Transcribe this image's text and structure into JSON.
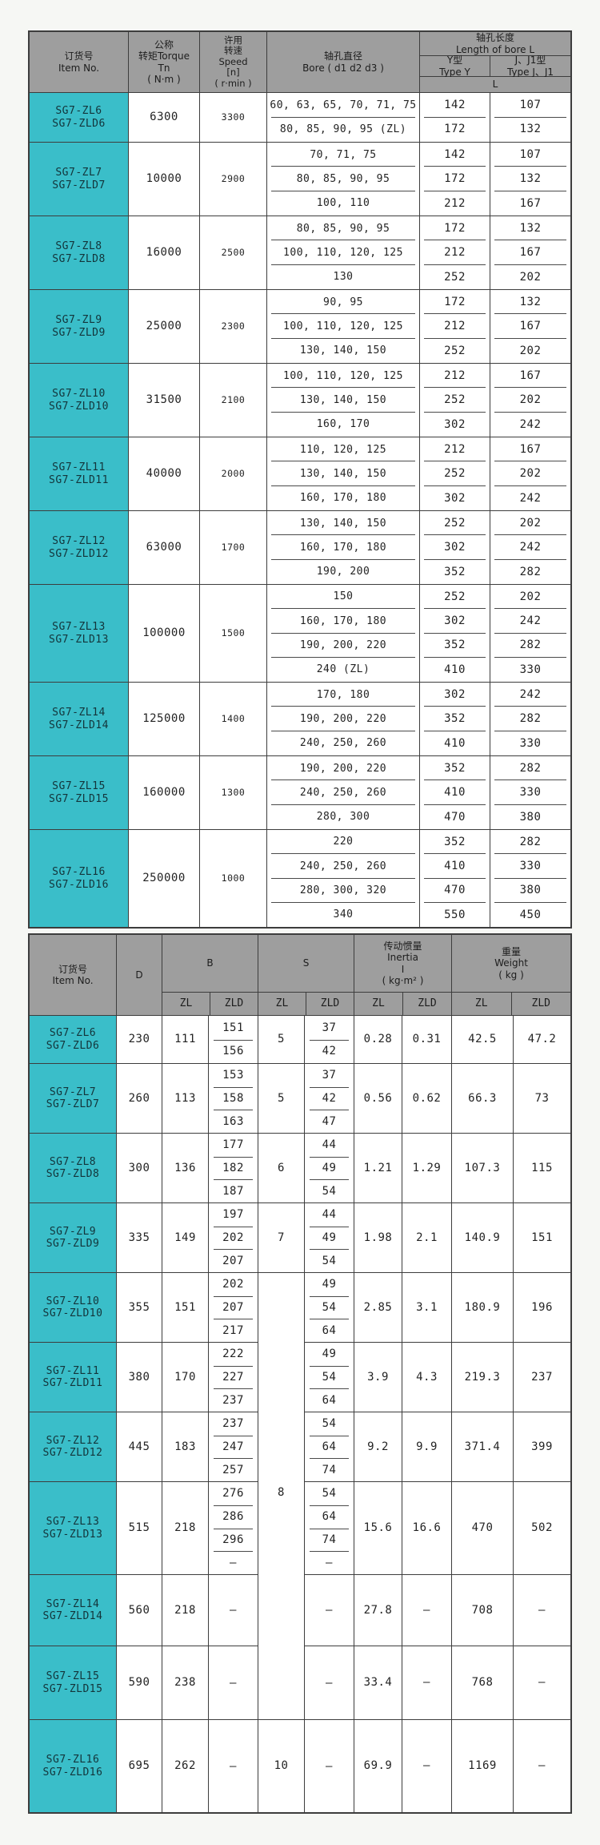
{
  "colors": {
    "header_bg": "#9e9e9e",
    "item_bg": "#3abec9",
    "border": "#3d3d3d",
    "cell_bg": "#ffffff",
    "page_bg": "#f6f7f4"
  },
  "table1": {
    "header": {
      "item": "订货号\nItem No.",
      "torque": "公称\n转矩Torque\nTn\n( N·m )",
      "speed": "许用\n转速\nSpeed\n[n]\n( r·min )",
      "bore": "轴孔直径\nBore ( d1  d2  d3 )",
      "length": "轴孔长度\nLength of bore L",
      "type_y": "Y型\nType Y",
      "type_j": "J、J1型\nType J、J1",
      "l": "L"
    },
    "groups": [
      {
        "item": "SG7-ZL6\nSG7-ZLD6",
        "torque": "6300",
        "speed": "3300",
        "rows": [
          [
            "60, 63, 65, 70, 71, 75",
            "142",
            "107"
          ],
          [
            "80, 85, 90, 95 (ZL)",
            "172",
            "132"
          ]
        ]
      },
      {
        "item": "SG7-ZL7\nSG7-ZLD7",
        "torque": "10000",
        "speed": "2900",
        "rows": [
          [
            "70, 71, 75",
            "142",
            "107"
          ],
          [
            "80, 85, 90, 95",
            "172",
            "132"
          ],
          [
            "100, 110",
            "212",
            "167"
          ]
        ]
      },
      {
        "item": "SG7-ZL8\nSG7-ZLD8",
        "torque": "16000",
        "speed": "2500",
        "rows": [
          [
            "80, 85, 90, 95",
            "172",
            "132"
          ],
          [
            "100, 110, 120, 125",
            "212",
            "167"
          ],
          [
            "130",
            "252",
            "202"
          ]
        ]
      },
      {
        "item": "SG7-ZL9\nSG7-ZLD9",
        "torque": "25000",
        "speed": "2300",
        "rows": [
          [
            "90, 95",
            "172",
            "132"
          ],
          [
            "100, 110, 120, 125",
            "212",
            "167"
          ],
          [
            "130, 140, 150",
            "252",
            "202"
          ]
        ]
      },
      {
        "item": "SG7-ZL10\nSG7-ZLD10",
        "torque": "31500",
        "speed": "2100",
        "rows": [
          [
            "100, 110, 120, 125",
            "212",
            "167"
          ],
          [
            "130, 140, 150",
            "252",
            "202"
          ],
          [
            "160, 170",
            "302",
            "242"
          ]
        ]
      },
      {
        "item": "SG7-ZL11\nSG7-ZLD11",
        "torque": "40000",
        "speed": "2000",
        "rows": [
          [
            "110, 120, 125",
            "212",
            "167"
          ],
          [
            "130, 140, 150",
            "252",
            "202"
          ],
          [
            "160, 170, 180",
            "302",
            "242"
          ]
        ]
      },
      {
        "item": "SG7-ZL12\nSG7-ZLD12",
        "torque": "63000",
        "speed": "1700",
        "rows": [
          [
            "130, 140, 150",
            "252",
            "202"
          ],
          [
            "160, 170, 180",
            "302",
            "242"
          ],
          [
            "190, 200",
            "352",
            "282"
          ]
        ]
      },
      {
        "item": "SG7-ZL13\nSG7-ZLD13",
        "torque": "100000",
        "speed": "1500",
        "rows": [
          [
            "150",
            "252",
            "202"
          ],
          [
            "160, 170, 180",
            "302",
            "242"
          ],
          [
            "190, 200, 220",
            "352",
            "282"
          ],
          [
            "240 (ZL)",
            "410",
            "330"
          ]
        ]
      },
      {
        "item": "SG7-ZL14\nSG7-ZLD14",
        "torque": "125000",
        "speed": "1400",
        "rows": [
          [
            "170, 180",
            "302",
            "242"
          ],
          [
            "190, 200, 220",
            "352",
            "282"
          ],
          [
            "240, 250, 260",
            "410",
            "330"
          ]
        ]
      },
      {
        "item": "SG7-ZL15\nSG7-ZLD15",
        "torque": "160000",
        "speed": "1300",
        "rows": [
          [
            "190, 200, 220",
            "352",
            "282"
          ],
          [
            "240, 250, 260",
            "410",
            "330"
          ],
          [
            "280, 300",
            "470",
            "380"
          ]
        ]
      },
      {
        "item": "SG7-ZL16\nSG7-ZLD16",
        "torque": "250000",
        "speed": "1000",
        "rows": [
          [
            "220",
            "352",
            "282"
          ],
          [
            "240, 250, 260",
            "410",
            "330"
          ],
          [
            "280, 300, 320",
            "470",
            "380"
          ],
          [
            "340",
            "550",
            "450"
          ]
        ]
      }
    ]
  },
  "table2": {
    "header": {
      "item": "订货号\nItem No.",
      "d": "D",
      "b": "B",
      "s": "S",
      "inertia": "传动惯量\nInertia\nI\n( kg·m² )",
      "weight": "重量\nWeight\n( kg )",
      "zl": "ZL",
      "zld": "ZLD"
    },
    "groups": [
      {
        "item": "SG7-ZL6\nSG7-ZLD6",
        "d": "230",
        "b_zl": "111",
        "b_zld": [
          "151",
          "156"
        ],
        "s_zl": "5",
        "s_zld": [
          "37",
          "42"
        ],
        "i_zl": "0.28",
        "i_zld": "0.31",
        "w_zl": "42.5",
        "w_zld": "47.2"
      },
      {
        "item": "SG7-ZL7\nSG7-ZLD7",
        "d": "260",
        "b_zl": "113",
        "b_zld": [
          "153",
          "158",
          "163"
        ],
        "s_zl": "5",
        "s_zld": [
          "37",
          "42",
          "47"
        ],
        "i_zl": "0.56",
        "i_zld": "0.62",
        "w_zl": "66.3",
        "w_zld": "73"
      },
      {
        "item": "SG7-ZL8\nSG7-ZLD8",
        "d": "300",
        "b_zl": "136",
        "b_zld": [
          "177",
          "182",
          "187"
        ],
        "s_zl": "6",
        "s_zld": [
          "44",
          "49",
          "54"
        ],
        "i_zl": "1.21",
        "i_zld": "1.29",
        "w_zl": "107.3",
        "w_zld": "115"
      },
      {
        "item": "SG7-ZL9\nSG7-ZLD9",
        "d": "335",
        "b_zl": "149",
        "b_zld": [
          "197",
          "202",
          "207"
        ],
        "s_zl": "7",
        "s_zld": [
          "44",
          "49",
          "54"
        ],
        "i_zl": "1.98",
        "i_zld": "2.1",
        "w_zl": "140.9",
        "w_zld": "151"
      },
      {
        "item": "SG7-ZL10\nSG7-ZLD10",
        "d": "355",
        "b_zl": "151",
        "b_zld": [
          "202",
          "207",
          "217"
        ],
        "s_zl": "",
        "s_zld": [
          "49",
          "54",
          "64"
        ],
        "i_zl": "2.85",
        "i_zld": "3.1",
        "w_zl": "180.9",
        "w_zld": "196"
      },
      {
        "item": "SG7-ZL11\nSG7-ZLD11",
        "d": "380",
        "b_zl": "170",
        "b_zld": [
          "222",
          "227",
          "237"
        ],
        "s_zl": "",
        "s_zld": [
          "49",
          "54",
          "64"
        ],
        "i_zl": "3.9",
        "i_zld": "4.3",
        "w_zl": "219.3",
        "w_zld": "237",
        "s_open": true
      },
      {
        "item": "SG7-ZL12\nSG7-ZLD12",
        "d": "445",
        "b_zl": "183",
        "b_zld": [
          "237",
          "247",
          "257"
        ],
        "s_zl": "",
        "s_zld": [
          "54",
          "64",
          "74"
        ],
        "i_zl": "9.2",
        "i_zld": "9.9",
        "w_zl": "371.4",
        "w_zld": "399",
        "s_open": true
      },
      {
        "item": "SG7-ZL13\nSG7-ZLD13",
        "d": "515",
        "b_zl": "218",
        "b_zld": [
          "276",
          "286",
          "296",
          "–"
        ],
        "s_zl": "8",
        "s_zld": [
          "54",
          "64",
          "74",
          "–"
        ],
        "i_zl": "15.6",
        "i_zld": "16.6",
        "w_zl": "470",
        "w_zld": "502",
        "s_open": true,
        "s_top": true
      },
      {
        "item": "SG7-ZL14\nSG7-ZLD14",
        "d": "560",
        "b_zl": "218",
        "b_zld": [
          "–"
        ],
        "s_zl": "",
        "s_zld": [
          "–"
        ],
        "i_zl": "27.8",
        "i_zld": "–",
        "w_zl": "708",
        "w_zld": "–",
        "s_open": true
      },
      {
        "item": "SG7-ZL15\nSG7-ZLD15",
        "d": "590",
        "b_zl": "238",
        "b_zld": [
          "–"
        ],
        "s_zl": "",
        "s_zld": [
          "–"
        ],
        "i_zl": "33.4",
        "i_zld": "–",
        "w_zl": "768",
        "w_zld": "–",
        "s_open": true
      },
      {
        "item": "SG7-ZL16\nSG7-ZLD16",
        "d": "695",
        "b_zl": "262",
        "b_zld": [
          "–"
        ],
        "s_zl": "10",
        "s_zld": [
          "–"
        ],
        "i_zl": "69.9",
        "i_zld": "–",
        "w_zl": "1169",
        "w_zld": "–"
      }
    ]
  }
}
